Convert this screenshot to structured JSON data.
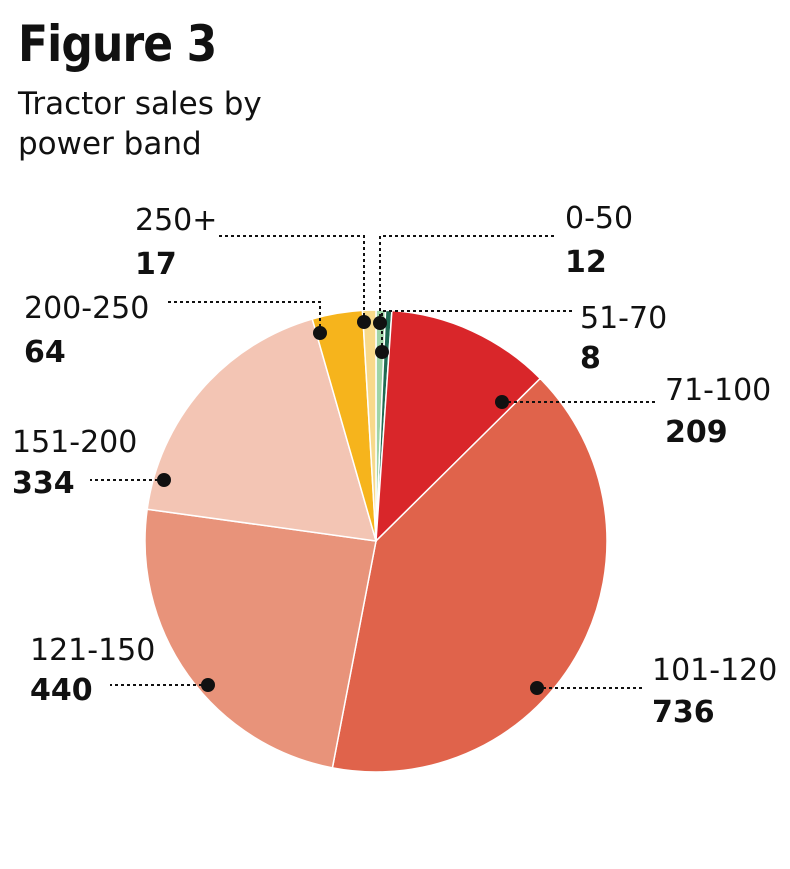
{
  "figure": {
    "label": "Figure 3",
    "title": "Tractor sales by power band"
  },
  "chart_data": {
    "type": "pie",
    "title": "Tractor sales by power band",
    "slices": [
      {
        "label": "0-50",
        "value": 12,
        "color": "#9fd4a6"
      },
      {
        "label": "51-70",
        "value": 8,
        "color": "#1f6a52"
      },
      {
        "label": "71-100",
        "value": 209,
        "color": "#d9262a"
      },
      {
        "label": "101-120",
        "value": 736,
        "color": "#e0634b"
      },
      {
        "label": "121-150",
        "value": 440,
        "color": "#e8937a"
      },
      {
        "label": "151-200",
        "value": 334,
        "color": "#f3c5b4"
      },
      {
        "label": "200-250",
        "value": 64,
        "color": "#f6b41c"
      },
      {
        "label": "250+",
        "value": 17,
        "color": "#f8d98a"
      }
    ]
  }
}
